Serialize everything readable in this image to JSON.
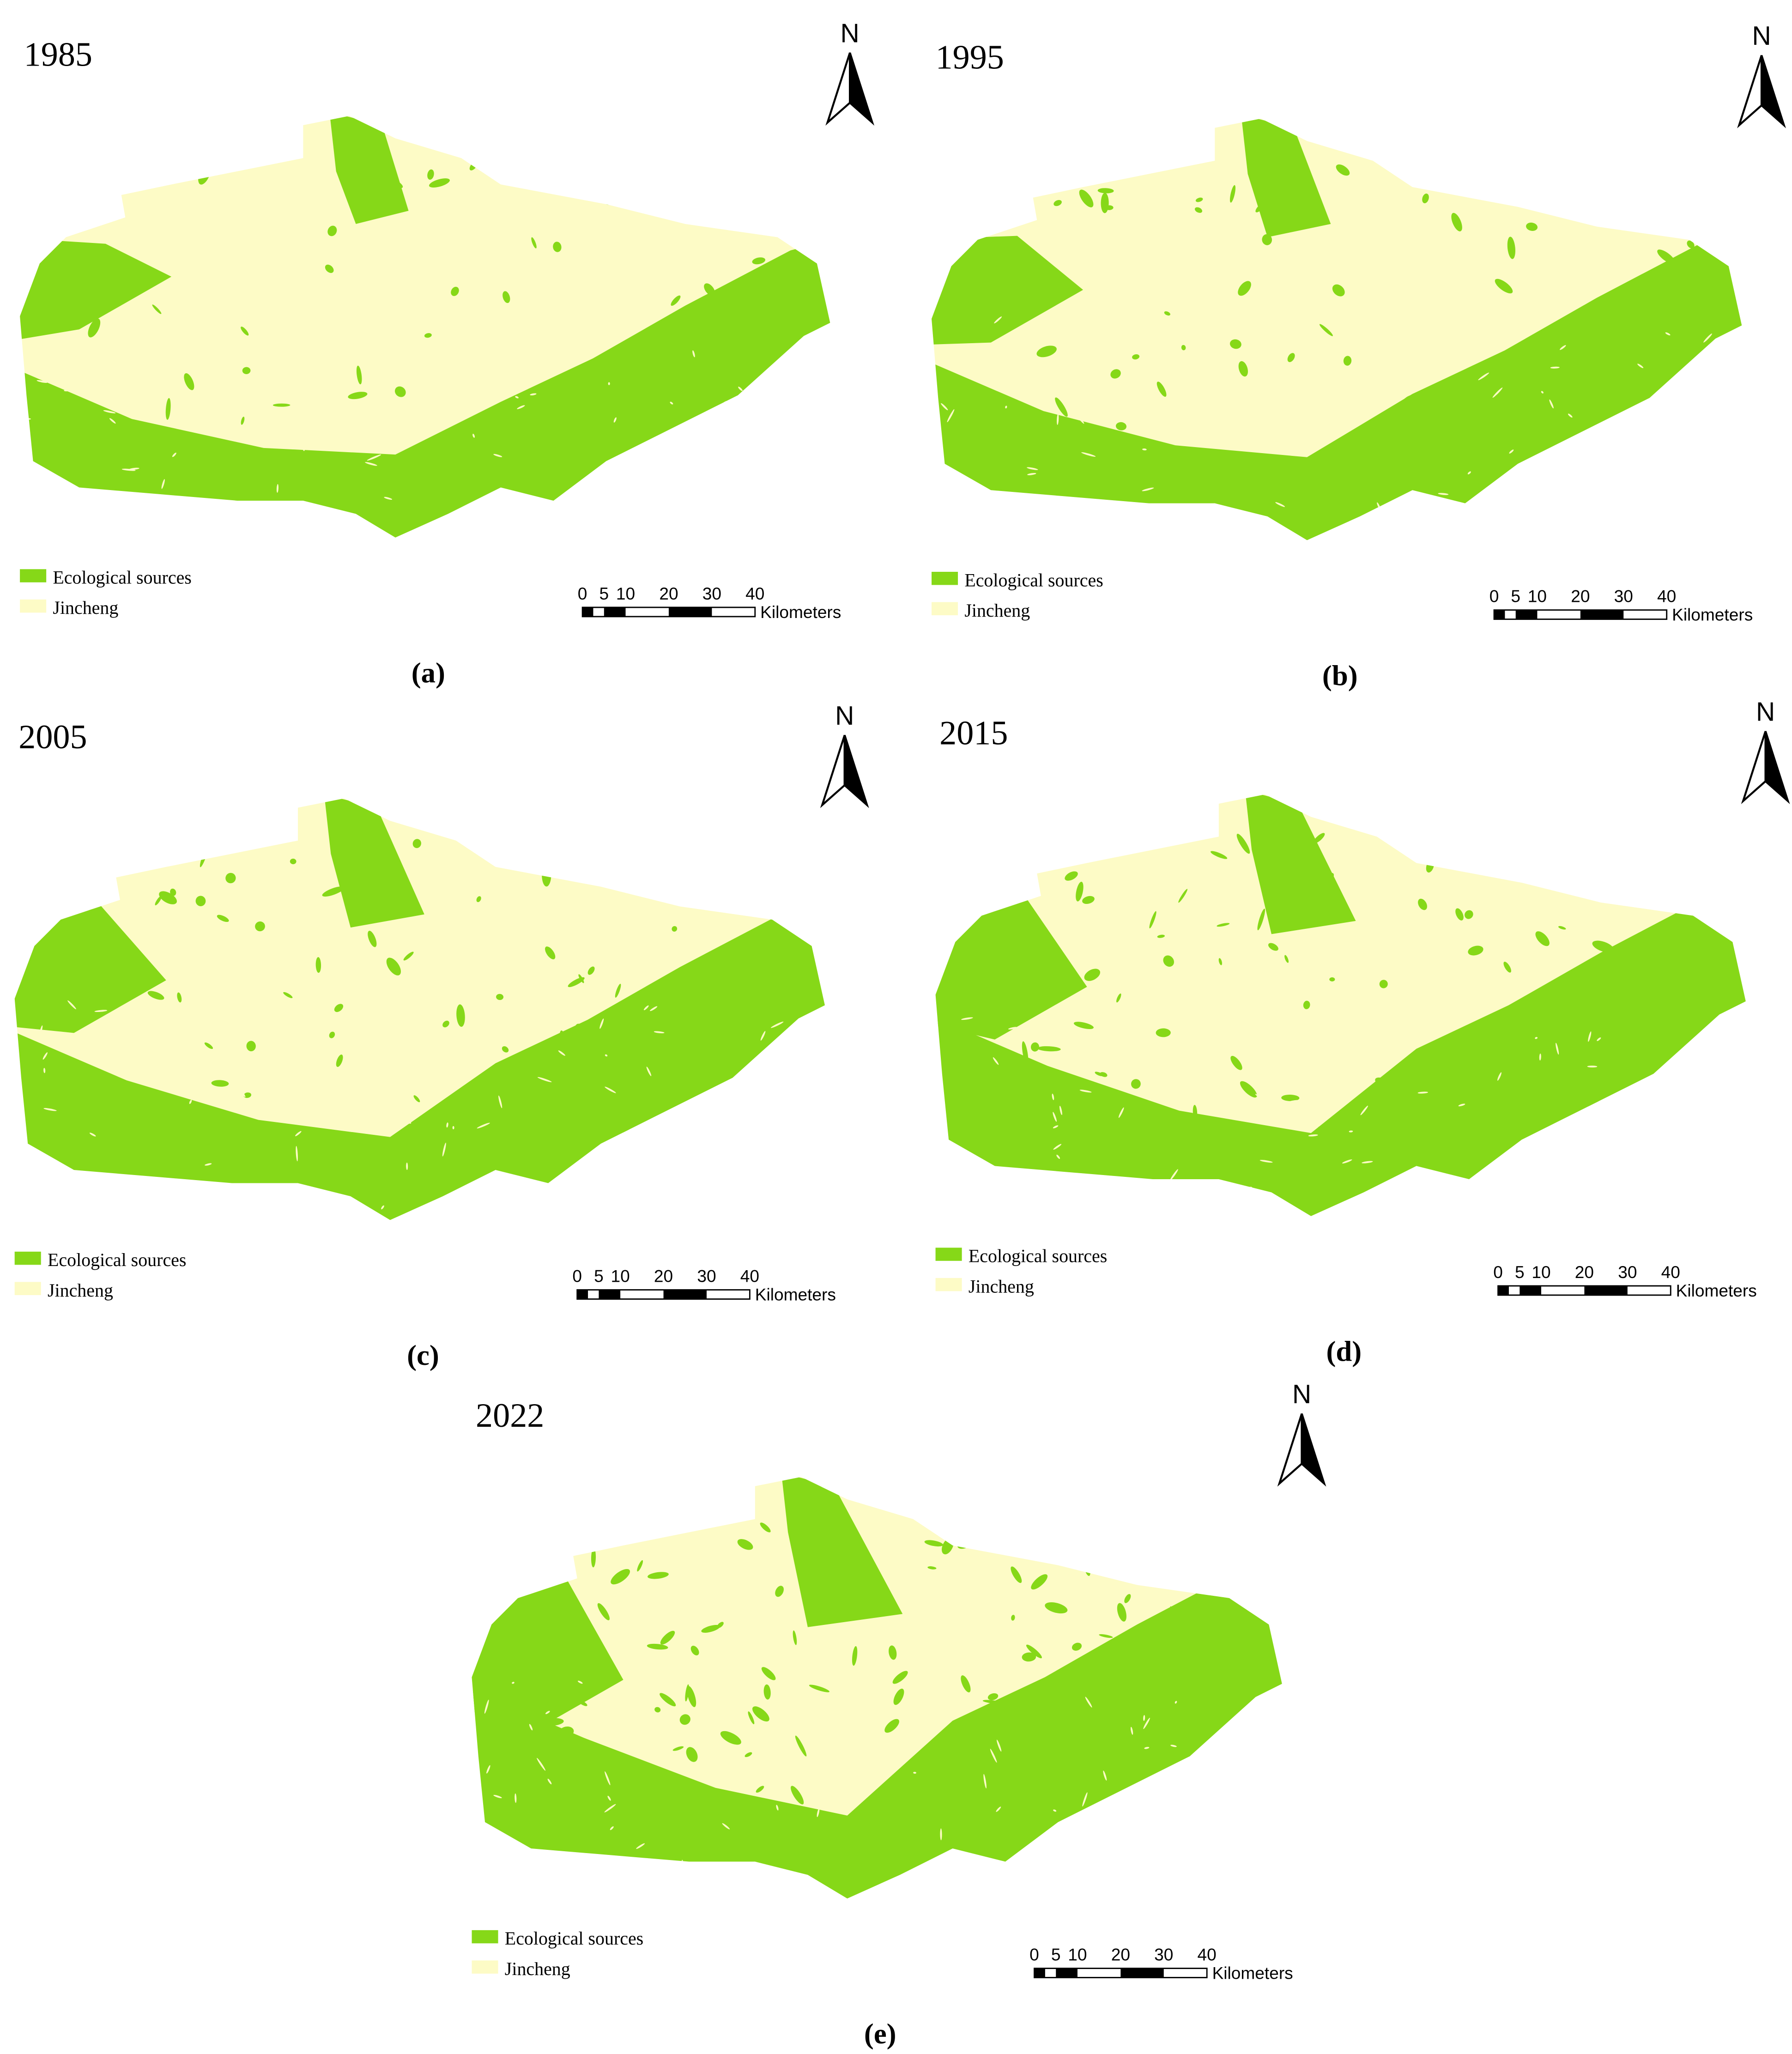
{
  "panels": [
    {
      "year": "1985",
      "caption": "(a)",
      "north": "N",
      "legend": [
        "Ecological sources",
        "Jincheng"
      ],
      "scale_bar": {
        "ticks": [
          0,
          5,
          10,
          20,
          30,
          40
        ],
        "unit": "Kilometers"
      }
    },
    {
      "year": "1995",
      "caption": "(b)",
      "north": "N",
      "legend": [
        "Ecological sources",
        "Jincheng"
      ],
      "scale_bar": {
        "ticks": [
          0,
          5,
          10,
          20,
          30,
          40
        ],
        "unit": "Kilometers"
      }
    },
    {
      "year": "2005",
      "caption": "(c)",
      "north": "N",
      "legend": [
        "Ecological sources",
        "Jincheng"
      ],
      "scale_bar": {
        "ticks": [
          0,
          5,
          10,
          20,
          30,
          40
        ],
        "unit": "Kilometers"
      }
    },
    {
      "year": "2015",
      "caption": "(d)",
      "north": "N",
      "legend": [
        "Ecological sources",
        "Jincheng"
      ],
      "scale_bar": {
        "ticks": [
          0,
          5,
          10,
          20,
          30,
          40
        ],
        "unit": "Kilometers"
      }
    },
    {
      "year": "2022",
      "caption": "(e)",
      "north": "N",
      "legend": [
        "Ecological sources",
        "Jincheng"
      ],
      "scale_bar": {
        "ticks": [
          0,
          5,
          10,
          20,
          30,
          40
        ],
        "unit": "Kilometers"
      }
    }
  ]
}
